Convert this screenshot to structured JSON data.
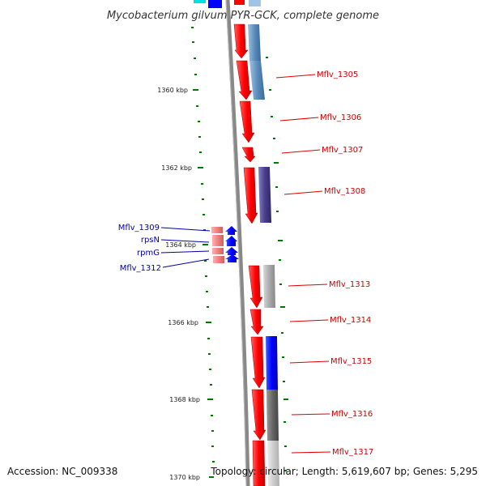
{
  "title": "Mycobacterium gilvum PYR-GCK, complete genome",
  "footer": {
    "accession": "Accession: NC_009338",
    "topology": "Topology: circular; Length: 5,619,607 bp; Genes: 5,295"
  },
  "axis_ticks": [
    "1360 kbp",
    "1362 kbp",
    "1364 kbp",
    "1366 kbp",
    "1368 kbp",
    "1370 kbp"
  ],
  "forward_gene_labels": [
    "Mflv_1305",
    "Mflv_1306",
    "Mflv_1307",
    "Mflv_1308",
    "Mflv_1313",
    "Mflv_1314",
    "Mflv_1315",
    "Mflv_1316",
    "Mflv_1317"
  ],
  "reverse_gene_labels": [
    "Mflv_1309",
    "rpsN",
    "rpmG",
    "Mflv_1312"
  ],
  "colors": {
    "forward_gene": "#ff0000",
    "reverse_gene": "#0000ff",
    "backbone": "#888888",
    "tick": "#007700",
    "forward_label": "#cc0000",
    "reverse_label": "#0000aa"
  }
}
